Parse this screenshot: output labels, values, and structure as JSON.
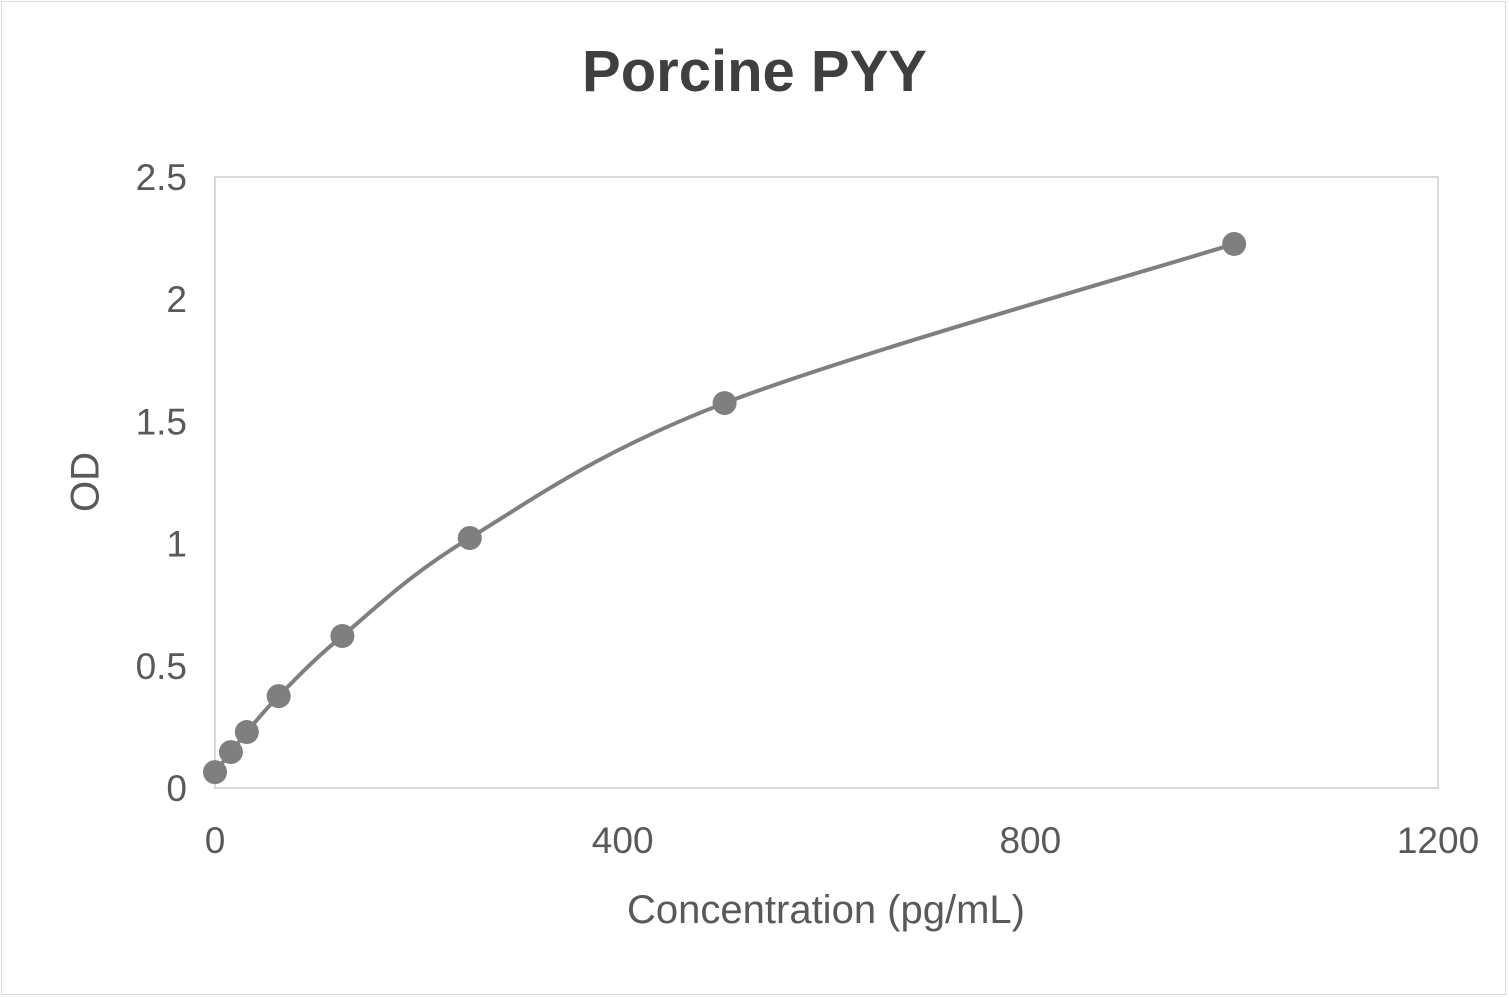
{
  "chart_data": {
    "type": "scatter",
    "title": "Porcine PYY",
    "xlabel": "Concentration (pg/mL)",
    "ylabel": "OD",
    "xlim": [
      0,
      1200
    ],
    "ylim": [
      0,
      2.5
    ],
    "xticks": [
      "0",
      "400",
      "800",
      "1200"
    ],
    "yticks": [
      "0",
      "0.5",
      "1",
      "1.5",
      "2",
      "2.5"
    ],
    "grid": false,
    "legend": null,
    "series": [
      {
        "name": "Standard curve",
        "style": "smooth line with markers",
        "color": "#7f7f7f",
        "x": [
          0,
          15.6,
          31.25,
          62.5,
          125,
          250,
          500,
          1000
        ],
        "y": [
          0.065,
          0.147,
          0.229,
          0.376,
          0.622,
          1.023,
          1.575,
          2.226
        ]
      }
    ]
  }
}
